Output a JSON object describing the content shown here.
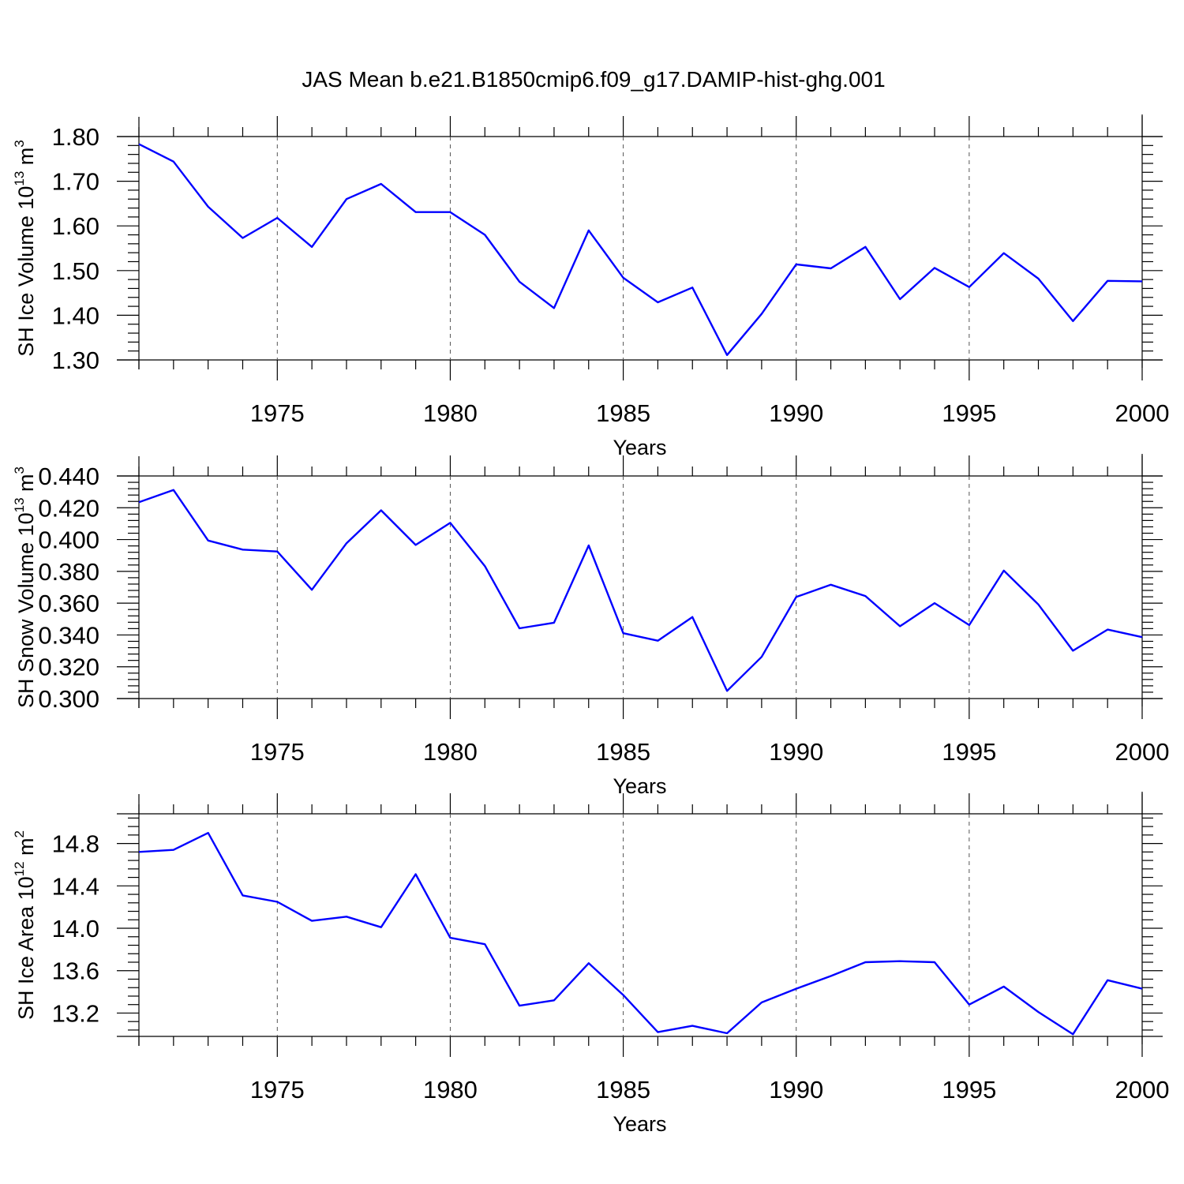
{
  "figure": {
    "title": "JAS Mean b.e21.B1850cmip6.f09_g17.DAMIP-hist-ghg.001"
  },
  "colors": {
    "series_line": "#0000ff",
    "axes": "#000000",
    "grid": "#555555"
  },
  "chart_data": [
    {
      "type": "line",
      "ylabel": {
        "prefix": "SH Ice Volume 10",
        "exponent": "13",
        "unit": "m",
        "unit_exponent": "3"
      },
      "xlabel": "Years",
      "xlim": [
        1971,
        2000
      ],
      "ylim": [
        1.3,
        1.8
      ],
      "yticks": [
        1.3,
        1.4,
        1.5,
        1.6,
        1.7,
        1.8
      ],
      "ytick_labels": [
        "1.30",
        "1.40",
        "1.50",
        "1.60",
        "1.70",
        "1.80"
      ],
      "xticks": [
        1975,
        1980,
        1985,
        1990,
        1995,
        2000
      ],
      "xtick_labels": [
        "1975",
        "1980",
        "1985",
        "1990",
        "1995",
        "2000"
      ],
      "grid": "vertical dashed at major x ticks",
      "x": [
        1971,
        1972,
        1973,
        1974,
        1975,
        1976,
        1977,
        1978,
        1979,
        1980,
        1981,
        1982,
        1983,
        1984,
        1985,
        1986,
        1987,
        1988,
        1989,
        1990,
        1991,
        1992,
        1993,
        1994,
        1995,
        1996,
        1997,
        1998,
        1999,
        2000
      ],
      "values": [
        1.783,
        1.744,
        1.643,
        1.573,
        1.618,
        1.553,
        1.66,
        1.694,
        1.631,
        1.631,
        1.58,
        1.475,
        1.416,
        1.59,
        1.484,
        1.429,
        1.462,
        1.311,
        1.403,
        1.514,
        1.505,
        1.553,
        1.436,
        1.506,
        1.463,
        1.539,
        1.482,
        1.387,
        1.477,
        1.476
      ]
    },
    {
      "type": "line",
      "ylabel": {
        "prefix": "SH Snow Volume 10",
        "exponent": "13",
        "unit": "m",
        "unit_exponent": "3"
      },
      "xlabel": "Years",
      "xlim": [
        1971,
        2000
      ],
      "ylim": [
        0.3,
        0.44
      ],
      "yticks": [
        0.3,
        0.32,
        0.34,
        0.36,
        0.38,
        0.4,
        0.42,
        0.44
      ],
      "ytick_labels": [
        "0.300",
        "0.320",
        "0.340",
        "0.360",
        "0.380",
        "0.400",
        "0.420",
        "0.440"
      ],
      "xticks": [
        1975,
        1980,
        1985,
        1990,
        1995,
        2000
      ],
      "xtick_labels": [
        "1975",
        "1980",
        "1985",
        "1990",
        "1995",
        "2000"
      ],
      "grid": "vertical dashed at major x ticks",
      "x": [
        1971,
        1972,
        1973,
        1974,
        1975,
        1976,
        1977,
        1978,
        1979,
        1980,
        1981,
        1982,
        1983,
        1984,
        1985,
        1986,
        1987,
        1988,
        1989,
        1990,
        1991,
        1992,
        1993,
        1994,
        1995,
        1996,
        1997,
        1998,
        1999,
        2000
      ],
      "values": [
        0.4235,
        0.4312,
        0.3994,
        0.3937,
        0.3925,
        0.3684,
        0.3977,
        0.4184,
        0.3966,
        0.4105,
        0.3833,
        0.3442,
        0.3477,
        0.3963,
        0.3411,
        0.3364,
        0.3513,
        0.3048,
        0.3262,
        0.3639,
        0.3716,
        0.3645,
        0.3455,
        0.36,
        0.3462,
        0.3805,
        0.3592,
        0.3301,
        0.3434,
        0.3386
      ]
    },
    {
      "type": "line",
      "ylabel": {
        "prefix": "SH Ice Area 10",
        "exponent": "12",
        "unit": "m",
        "unit_exponent": "2"
      },
      "xlabel": "Years",
      "xlim": [
        1971,
        2000
      ],
      "ylim": [
        12.98,
        15.08
      ],
      "yticks": [
        13.2,
        13.6,
        14.0,
        14.4,
        14.8
      ],
      "ytick_labels": [
        "13.2",
        "13.6",
        "14.0",
        "14.4",
        "14.8"
      ],
      "xticks": [
        1975,
        1980,
        1985,
        1990,
        1995,
        2000
      ],
      "xtick_labels": [
        "1975",
        "1980",
        "1985",
        "1990",
        "1995",
        "2000"
      ],
      "grid": "vertical dashed at major x ticks",
      "x": [
        1971,
        1972,
        1973,
        1974,
        1975,
        1976,
        1977,
        1978,
        1979,
        1980,
        1981,
        1982,
        1983,
        1984,
        1985,
        1986,
        1987,
        1988,
        1989,
        1990,
        1991,
        1992,
        1993,
        1994,
        1995,
        1996,
        1997,
        1998,
        1999,
        2000
      ],
      "values": [
        14.72,
        14.74,
        14.9,
        14.31,
        14.25,
        14.07,
        14.11,
        14.01,
        14.51,
        13.91,
        13.85,
        13.27,
        13.32,
        13.67,
        13.37,
        13.02,
        13.08,
        13.01,
        13.3,
        13.43,
        13.55,
        13.68,
        13.69,
        13.68,
        13.28,
        13.45,
        13.21,
        13.0,
        13.51,
        13.43
      ]
    }
  ]
}
